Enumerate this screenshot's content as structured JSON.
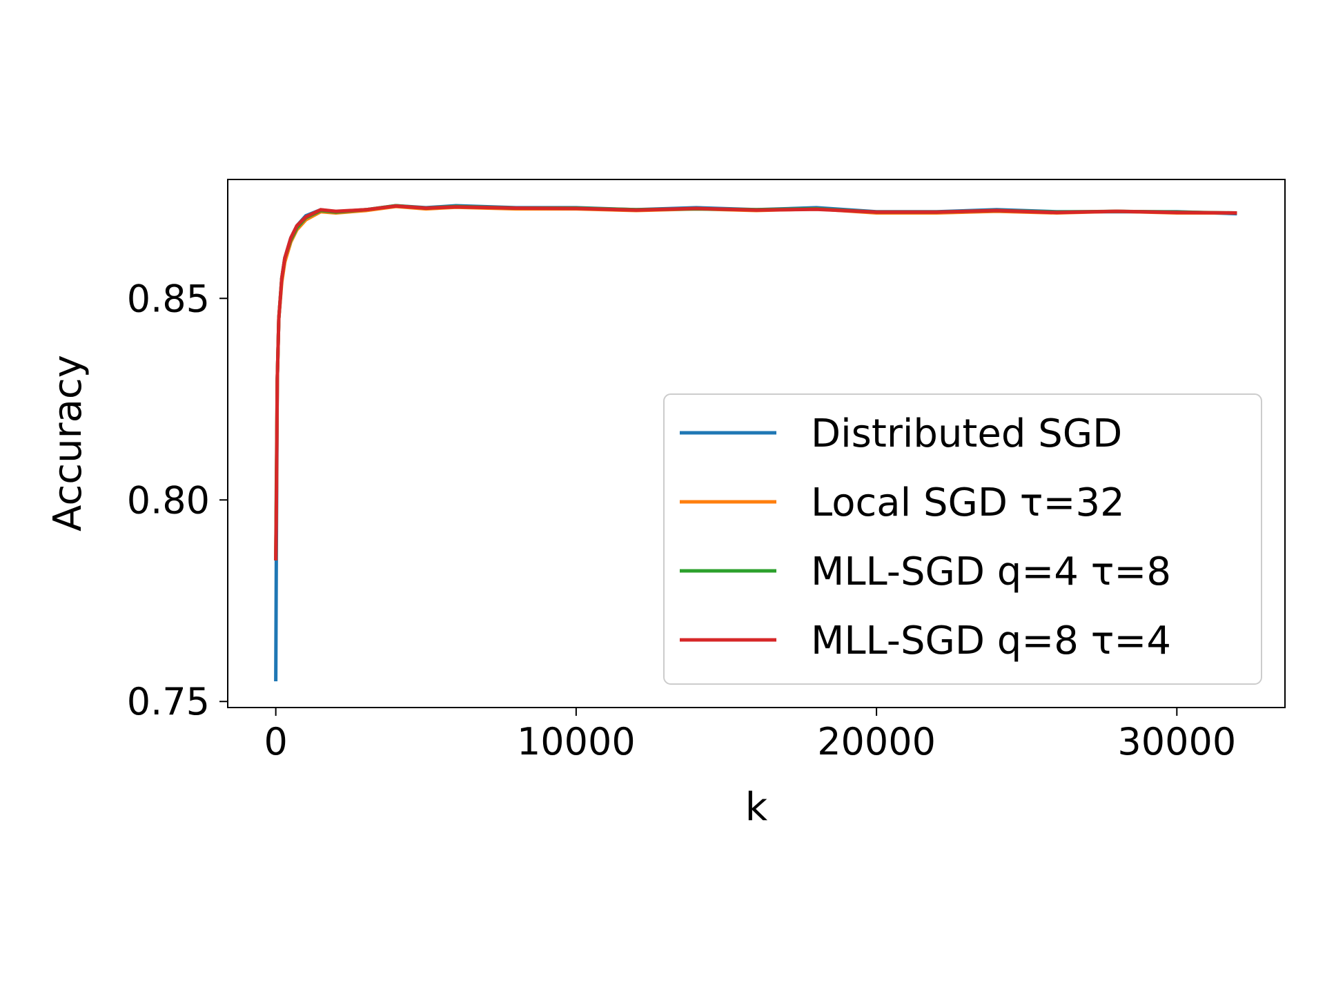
{
  "chart_data": {
    "type": "line",
    "title": "",
    "xlabel": "k",
    "ylabel": "Accuracy",
    "xlim": [
      -1600,
      33600
    ],
    "ylim": [
      0.7485,
      0.8795
    ],
    "x_ticks": [
      0,
      10000,
      20000,
      30000
    ],
    "x_tick_labels": [
      "0",
      "10000",
      "20000",
      "30000"
    ],
    "y_ticks": [
      0.75,
      0.8,
      0.85
    ],
    "y_tick_labels": [
      "0.75",
      "0.80",
      "0.85"
    ],
    "grid": false,
    "legend_position": "lower-right",
    "series": [
      {
        "name": "Distributed SGD",
        "color": "#1f77b4",
        "x": [
          0,
          20,
          50,
          100,
          200,
          300,
          500,
          700,
          1000,
          1500,
          2000,
          3000,
          4000,
          5000,
          6000,
          8000,
          10000,
          12000,
          14000,
          16000,
          18000,
          20000,
          22000,
          24000,
          26000,
          28000,
          30000,
          32000
        ],
        "y": [
          0.755,
          0.79,
          0.83,
          0.845,
          0.855,
          0.86,
          0.865,
          0.868,
          0.8705,
          0.872,
          0.8715,
          0.872,
          0.873,
          0.8725,
          0.873,
          0.8725,
          0.8725,
          0.872,
          0.8725,
          0.872,
          0.8725,
          0.8715,
          0.8715,
          0.872,
          0.8715,
          0.8715,
          0.8715,
          0.871
        ]
      },
      {
        "name": "Local SGD τ=32",
        "color": "#ff7f0e",
        "x": [
          0,
          20,
          50,
          100,
          200,
          300,
          500,
          700,
          1000,
          1500,
          2000,
          3000,
          4000,
          5000,
          6000,
          8000,
          10000,
          12000,
          14000,
          16000,
          18000,
          20000,
          22000,
          24000,
          26000,
          28000,
          30000,
          32000
        ],
        "y": [
          0.785,
          0.8,
          0.83,
          0.845,
          0.854,
          0.859,
          0.864,
          0.867,
          0.8695,
          0.8715,
          0.8712,
          0.8718,
          0.8728,
          0.8722,
          0.8726,
          0.8722,
          0.8722,
          0.8718,
          0.8722,
          0.8718,
          0.8722,
          0.8712,
          0.8712,
          0.8716,
          0.8712,
          0.8716,
          0.8712,
          0.8712
        ]
      },
      {
        "name": "MLL-SGD q=4 τ=8",
        "color": "#2ca02c",
        "x": [
          0,
          20,
          50,
          100,
          200,
          300,
          500,
          700,
          1000,
          1500,
          2000,
          3000,
          4000,
          5000,
          6000,
          8000,
          10000,
          12000,
          14000,
          16000,
          18000,
          20000,
          22000,
          24000,
          26000,
          28000,
          30000,
          32000
        ],
        "y": [
          0.785,
          0.805,
          0.83,
          0.845,
          0.855,
          0.86,
          0.8645,
          0.8675,
          0.87,
          0.8718,
          0.8714,
          0.872,
          0.873,
          0.8724,
          0.8728,
          0.8724,
          0.8724,
          0.872,
          0.8722,
          0.872,
          0.8722,
          0.8714,
          0.8714,
          0.8718,
          0.8714,
          0.8716,
          0.8714,
          0.8712
        ]
      },
      {
        "name": "MLL-SGD q=8 τ=4",
        "color": "#d62728",
        "x": [
          0,
          20,
          50,
          100,
          200,
          300,
          500,
          700,
          1000,
          1500,
          2000,
          3000,
          4000,
          5000,
          6000,
          8000,
          10000,
          12000,
          14000,
          16000,
          18000,
          20000,
          22000,
          24000,
          26000,
          28000,
          30000,
          32000
        ],
        "y": [
          0.785,
          0.8,
          0.83,
          0.845,
          0.855,
          0.86,
          0.865,
          0.868,
          0.8702,
          0.872,
          0.8716,
          0.872,
          0.8729,
          0.8724,
          0.8727,
          0.8724,
          0.8723,
          0.8719,
          0.8723,
          0.8719,
          0.8721,
          0.8714,
          0.8714,
          0.8718,
          0.8713,
          0.8716,
          0.8713,
          0.8712
        ]
      }
    ]
  }
}
